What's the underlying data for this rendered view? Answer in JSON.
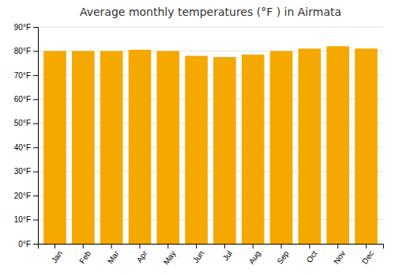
{
  "chart_data": {
    "type": "bar",
    "title": "Average monthly temperatures (°F ) in Airmata",
    "categories": [
      "Jan",
      "Feb",
      "Mar",
      "Apr",
      "May",
      "Jun",
      "Jul",
      "Aug",
      "Sep",
      "Oct",
      "Nov",
      "Dec"
    ],
    "values": [
      80,
      80,
      80,
      80.5,
      80,
      78,
      77.5,
      78.5,
      80,
      81,
      82,
      81
    ],
    "color": "#F5A800",
    "ylim": [
      0,
      90
    ],
    "yticks": [
      {
        "value": 0,
        "label": "0°F"
      },
      {
        "value": 10,
        "label": "10°F"
      },
      {
        "value": 20,
        "label": "20°F"
      },
      {
        "value": 30,
        "label": "30°F"
      },
      {
        "value": 40,
        "label": "40°F"
      },
      {
        "value": 50,
        "label": "50°F"
      },
      {
        "value": 60,
        "label": "60°F"
      },
      {
        "value": 70,
        "label": "70°F"
      },
      {
        "value": 80,
        "label": "80°F"
      },
      {
        "value": 90,
        "label": "90°F"
      }
    ],
    "grid": true
  }
}
